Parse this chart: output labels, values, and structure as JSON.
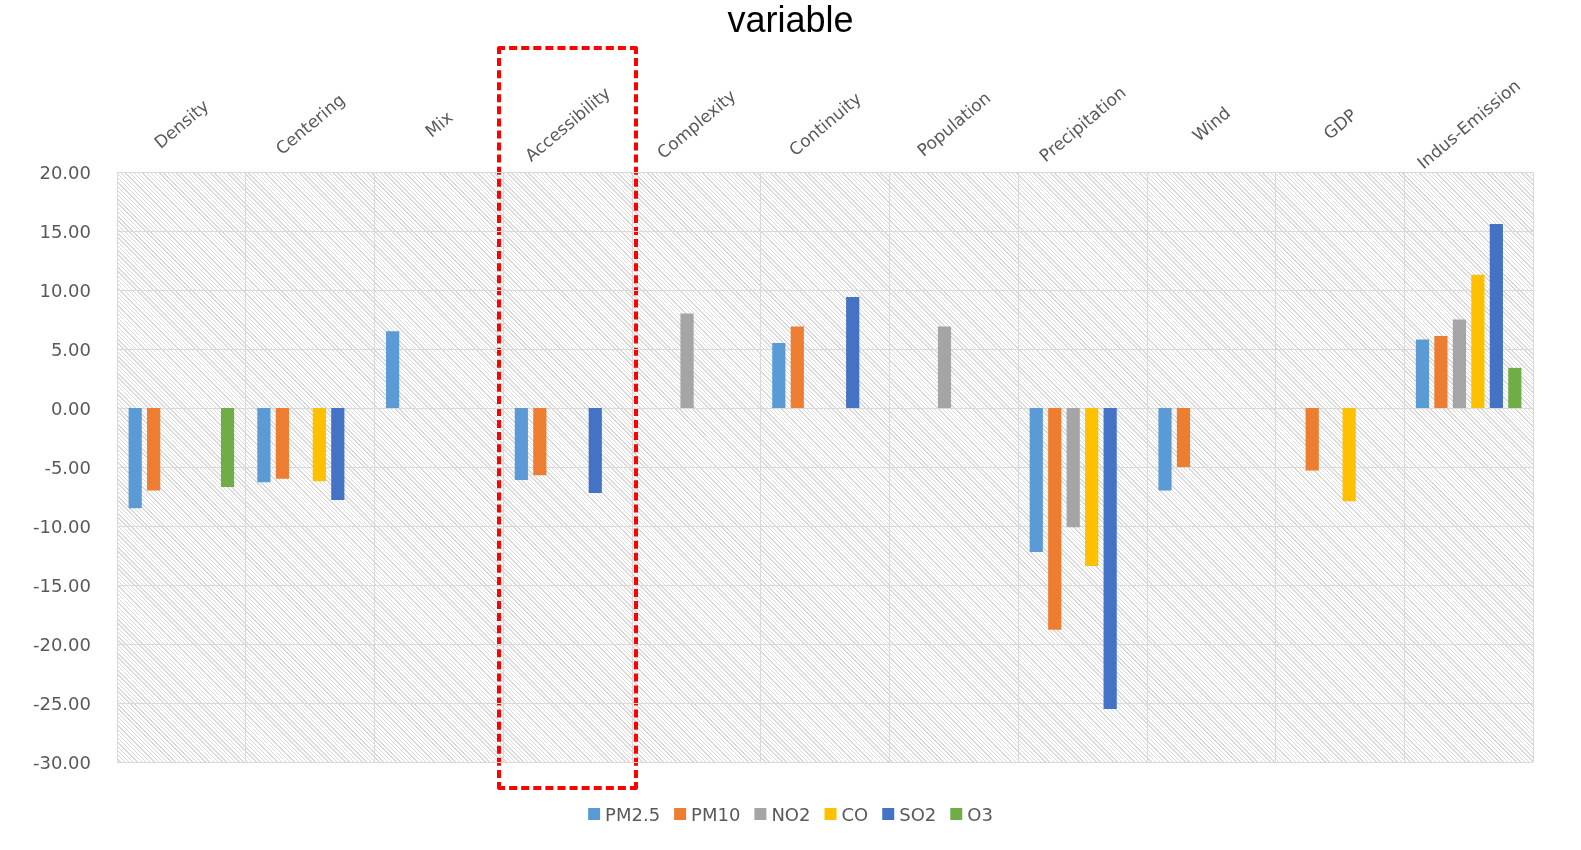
{
  "chart_data": {
    "type": "bar",
    "title": "variable",
    "categories": [
      "Density",
      "Centering",
      "Mix",
      "Accessibility",
      "Complexity",
      "Continuity",
      "Population",
      "Precipitation",
      "Wind",
      "GDP",
      "Indus-Emission"
    ],
    "series": [
      {
        "name": "PM2.5",
        "color": "#5b9bd5",
        "values": [
          -8.5,
          -6.3,
          6.5,
          -6.1,
          null,
          5.5,
          null,
          -12.2,
          -7.0,
          null,
          5.8
        ]
      },
      {
        "name": "PM10",
        "color": "#ed7d31",
        "values": [
          -7.0,
          -6.0,
          null,
          -5.7,
          null,
          6.9,
          null,
          -18.8,
          -5.0,
          -5.3,
          6.1
        ]
      },
      {
        "name": "NO2",
        "color": "#a5a5a5",
        "values": [
          null,
          null,
          null,
          null,
          8.0,
          null,
          6.9,
          -10.1,
          null,
          null,
          7.5
        ]
      },
      {
        "name": "CO",
        "color": "#ffc000",
        "values": [
          null,
          -6.2,
          null,
          null,
          null,
          null,
          null,
          -13.4,
          null,
          -7.9,
          11.3
        ]
      },
      {
        "name": "SO2",
        "color": "#4472c4",
        "values": [
          null,
          -7.8,
          null,
          -7.2,
          null,
          9.4,
          null,
          -25.5,
          null,
          null,
          15.6
        ]
      },
      {
        "name": "O3",
        "color": "#70ad47",
        "values": [
          -6.7,
          null,
          null,
          null,
          null,
          null,
          null,
          null,
          null,
          null,
          3.4
        ]
      }
    ],
    "ylim": [
      -30,
      20
    ],
    "yticks": [
      {
        "value": -30,
        "label": "-30.00"
      },
      {
        "value": -25,
        "label": "-25.00"
      },
      {
        "value": -20,
        "label": "-20.00"
      },
      {
        "value": -15,
        "label": "-15.00"
      },
      {
        "value": -10,
        "label": "-10.00"
      },
      {
        "value": -5,
        "label": "-5.00"
      },
      {
        "value": 0,
        "label": "0.00"
      },
      {
        "value": 5,
        "label": "5.00"
      },
      {
        "value": 10,
        "label": "10.00"
      },
      {
        "value": 15,
        "label": "15.00"
      },
      {
        "value": 20,
        "label": "20.00"
      }
    ],
    "grid": true,
    "legend": "bottom"
  }
}
